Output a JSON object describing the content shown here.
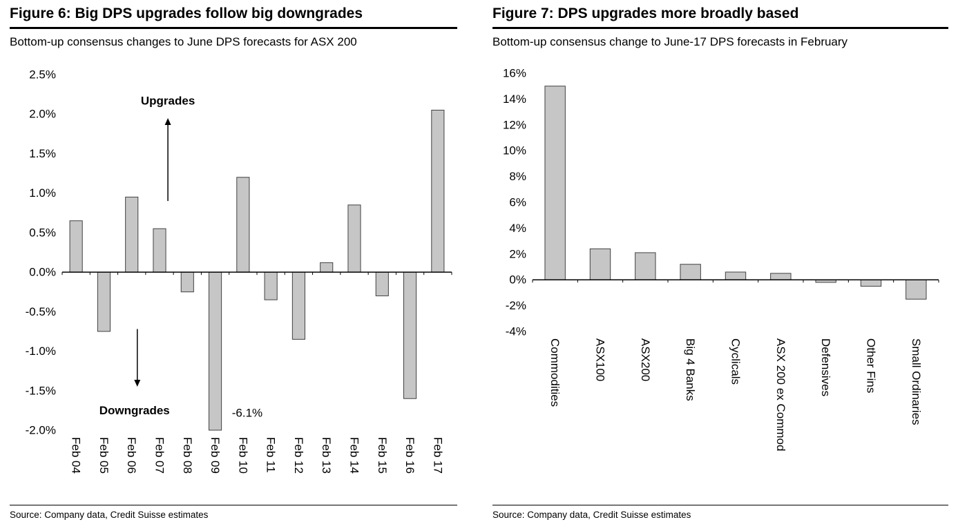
{
  "page": {
    "figures": [
      {
        "title": "Figure 6: Big DPS upgrades follow big downgrades",
        "subtitle": "Bottom-up consensus changes to June DPS forecasts for ASX 200",
        "source": "Source: Company data, Credit Suisse estimates"
      },
      {
        "title": "Figure 7: DPS upgrades more broadly based",
        "subtitle": "Bottom-up consensus change to June-17 DPS forecasts in February",
        "source": "Source: Company data, Credit Suisse estimates"
      }
    ]
  },
  "colors": {
    "bar_fill": "#C6C6C6",
    "bar_stroke": "#404040",
    "axis": "#000000"
  },
  "chart_data": [
    {
      "type": "bar",
      "title": "Figure 6: Big DPS upgrades follow big downgrades",
      "xlabel": "",
      "ylabel": "",
      "categories": [
        "Feb 04",
        "Feb 05",
        "Feb 06",
        "Feb 07",
        "Feb 08",
        "Feb 09",
        "Feb 10",
        "Feb 11",
        "Feb 12",
        "Feb 13",
        "Feb 14",
        "Feb 15",
        "Feb 16",
        "Feb 17"
      ],
      "values": [
        0.65,
        -0.75,
        0.95,
        0.55,
        -0.25,
        -6.1,
        1.2,
        -0.35,
        -0.85,
        0.12,
        0.85,
        -0.3,
        -1.6,
        2.05
      ],
      "ylim": [
        -2.0,
        2.5
      ],
      "ytick_step": 0.5,
      "ytick_decimals": 1,
      "grid": false,
      "legend": false,
      "clip_to_ylim": true,
      "annotations": [
        {
          "type": "text",
          "text": "Upgrades",
          "x": 3.3,
          "y": 2.17,
          "bold": true
        },
        {
          "type": "arrow",
          "x": 3.3,
          "y1": 0.9,
          "y2": 1.95
        },
        {
          "type": "text",
          "text": "Downgrades",
          "x": 2.1,
          "y": -1.75,
          "bold": true
        },
        {
          "type": "arrow",
          "x": 2.2,
          "y1": -0.72,
          "y2": -1.45
        },
        {
          "type": "text",
          "text": "-6.1%",
          "x": 5.6,
          "y": -1.78,
          "anchor": "start"
        }
      ]
    },
    {
      "type": "bar",
      "title": "Figure 7: DPS upgrades more broadly based",
      "xlabel": "",
      "ylabel": "",
      "categories": [
        "Commodities",
        "ASX100",
        "ASX200",
        "Big 4 Banks",
        "Cyclicals",
        "ASX 200 ex Commod",
        "Defensives",
        "Other Fins",
        "Small Ordinaries"
      ],
      "values": [
        15.0,
        2.4,
        2.1,
        1.2,
        0.6,
        0.5,
        -0.2,
        -0.5,
        -1.5
      ],
      "ylim": [
        -4,
        16
      ],
      "ytick_step": 2,
      "ytick_decimals": 0,
      "grid": false,
      "legend": false,
      "clip_to_ylim": true,
      "annotations": []
    }
  ]
}
